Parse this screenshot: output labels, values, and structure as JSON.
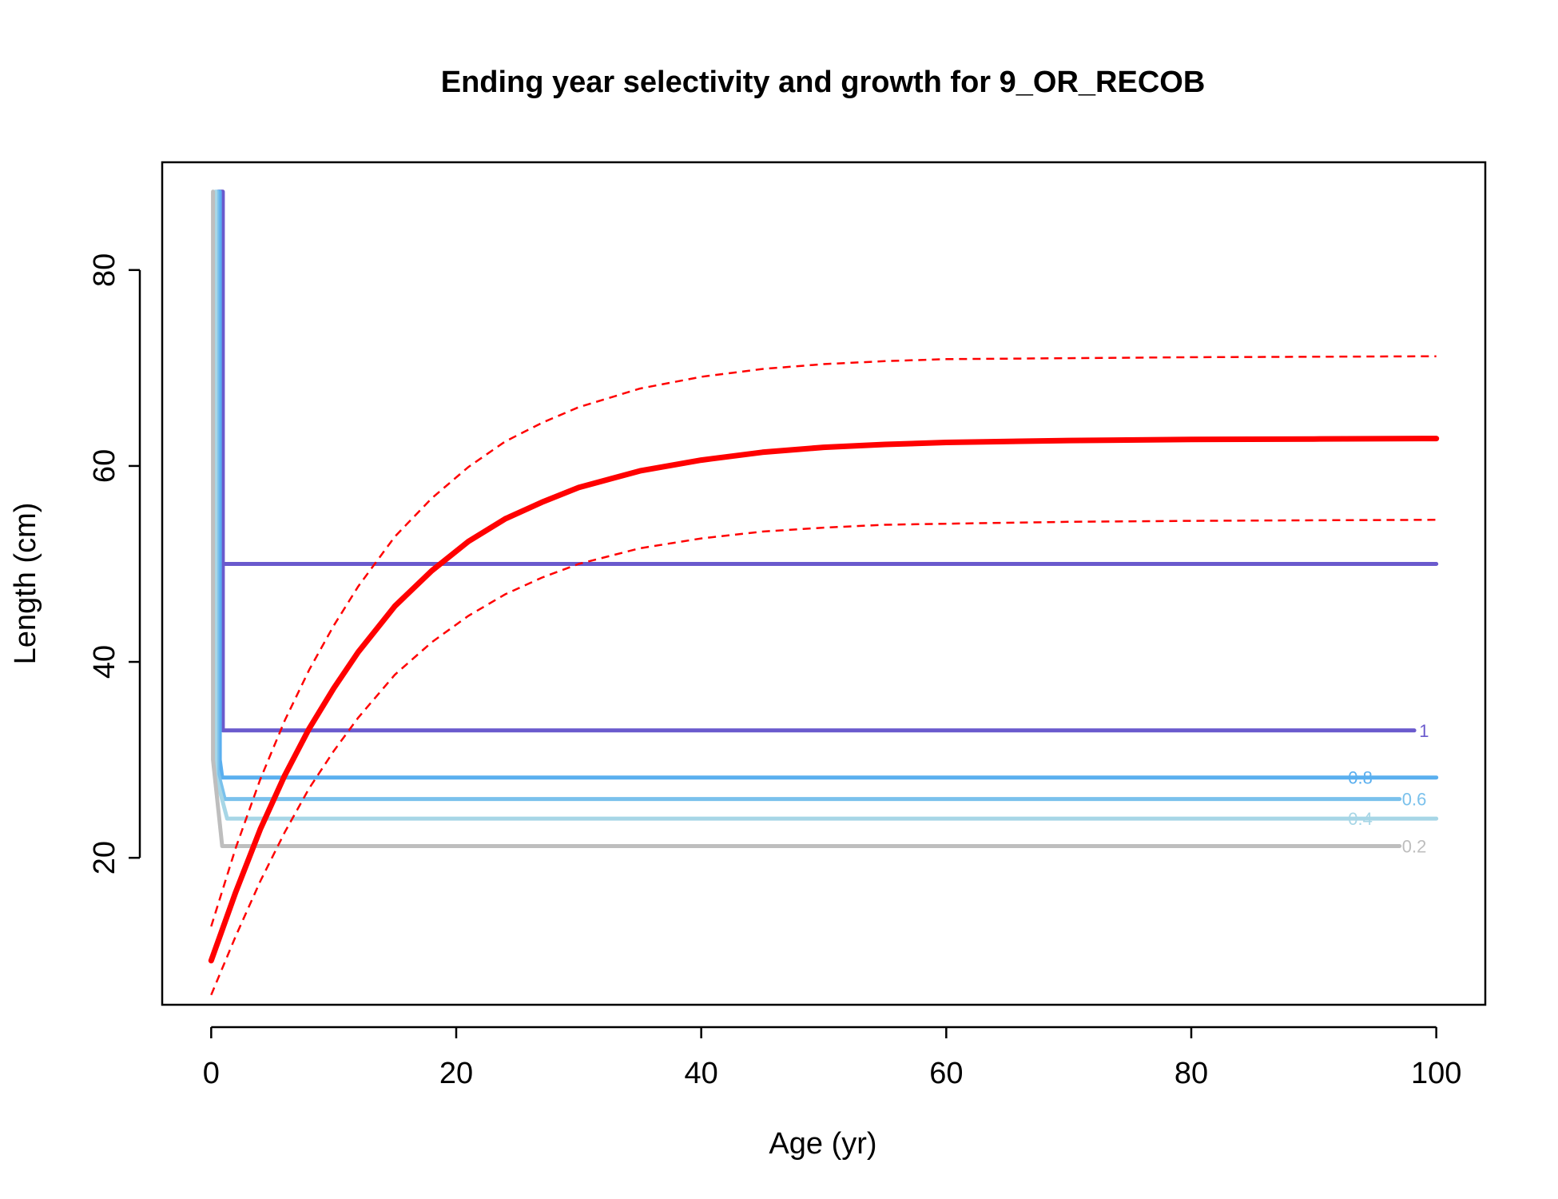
{
  "chart_data": {
    "type": "line",
    "title": "Ending year selectivity and growth for 9_OR_RECOB",
    "xlabel": "Age (yr)",
    "ylabel": "Length (cm)",
    "xlim": [
      -4,
      104
    ],
    "ylim": [
      5,
      91
    ],
    "x_ticks": [
      0,
      20,
      40,
      60,
      80,
      100
    ],
    "y_ticks": [
      20,
      40,
      60,
      80
    ],
    "x_tick_labels": [
      "0",
      "20",
      "40",
      "60",
      "80",
      "100"
    ],
    "y_tick_labels": [
      "20",
      "40",
      "60",
      "80"
    ],
    "grid": false,
    "legend": "none",
    "growth": {
      "color": "#ff0000",
      "mean": {
        "x": [
          0,
          2,
          4,
          6,
          8,
          10,
          12,
          15,
          18,
          21,
          24,
          27,
          30,
          35,
          40,
          45,
          50,
          55,
          60,
          70,
          80,
          90,
          100
        ],
        "y": [
          9.5,
          16.5,
          22.9,
          28.4,
          33.2,
          37.3,
          41.0,
          45.7,
          49.3,
          52.3,
          54.6,
          56.3,
          57.8,
          59.5,
          60.6,
          61.4,
          61.9,
          62.2,
          62.4,
          62.6,
          62.7,
          62.75,
          62.8
        ]
      },
      "upper": {
        "x": [
          0,
          2,
          4,
          6,
          8,
          10,
          12,
          15,
          18,
          21,
          24,
          27,
          30,
          35,
          40,
          45,
          50,
          55,
          60,
          70,
          80,
          90,
          100
        ],
        "y": [
          13.0,
          21.0,
          28.0,
          34.0,
          39.2,
          43.7,
          47.7,
          52.8,
          56.7,
          59.9,
          62.5,
          64.4,
          66.0,
          67.9,
          69.1,
          69.9,
          70.4,
          70.7,
          70.9,
          71.0,
          71.1,
          71.15,
          71.2
        ]
      },
      "lower": {
        "x": [
          0,
          2,
          4,
          6,
          8,
          10,
          12,
          15,
          18,
          21,
          24,
          27,
          30,
          35,
          40,
          45,
          50,
          55,
          60,
          70,
          80,
          90,
          100
        ],
        "y": [
          6.0,
          12.0,
          17.6,
          22.6,
          27.1,
          30.9,
          34.3,
          38.7,
          42.0,
          44.7,
          46.9,
          48.6,
          50.0,
          51.6,
          52.6,
          53.3,
          53.7,
          54.0,
          54.1,
          54.3,
          54.4,
          54.45,
          54.5
        ]
      }
    },
    "selectivity_contours": [
      {
        "level": "1",
        "color": "#6a5acd",
        "x": [
          0.6,
          0.95,
          0.95,
          100,
          100,
          0.95,
          0.95,
          98.2
        ],
        "y": [
          88,
          88,
          50,
          50,
          50,
          50,
          33,
          33
        ],
        "label_x": 99.0,
        "label_y": 33
      },
      {
        "level": "0.8",
        "color": "#5aafef",
        "x": [
          0.7,
          0.7,
          0.9,
          100
        ],
        "y": [
          88,
          30,
          28.2,
          28.2
        ],
        "label_x": 93.8,
        "label_y": 28.2
      },
      {
        "level": "0.6",
        "color": "#7ac1ec",
        "x": [
          0.5,
          0.5,
          1.1,
          97
        ],
        "y": [
          88,
          29,
          26,
          26
        ],
        "label_x": 98.2,
        "label_y": 26
      },
      {
        "level": "0.4",
        "color": "#a7d6e6",
        "x": [
          0.35,
          0.35,
          1.3,
          100
        ],
        "y": [
          88,
          28.5,
          24,
          24
        ],
        "label_x": 93.8,
        "label_y": 24
      },
      {
        "level": "0.2",
        "color": "#bebebe",
        "x": [
          0.15,
          0.15,
          0.9,
          97
        ],
        "y": [
          88,
          30,
          21.2,
          21.2
        ],
        "label_x": 98.2,
        "label_y": 21.2
      }
    ]
  }
}
